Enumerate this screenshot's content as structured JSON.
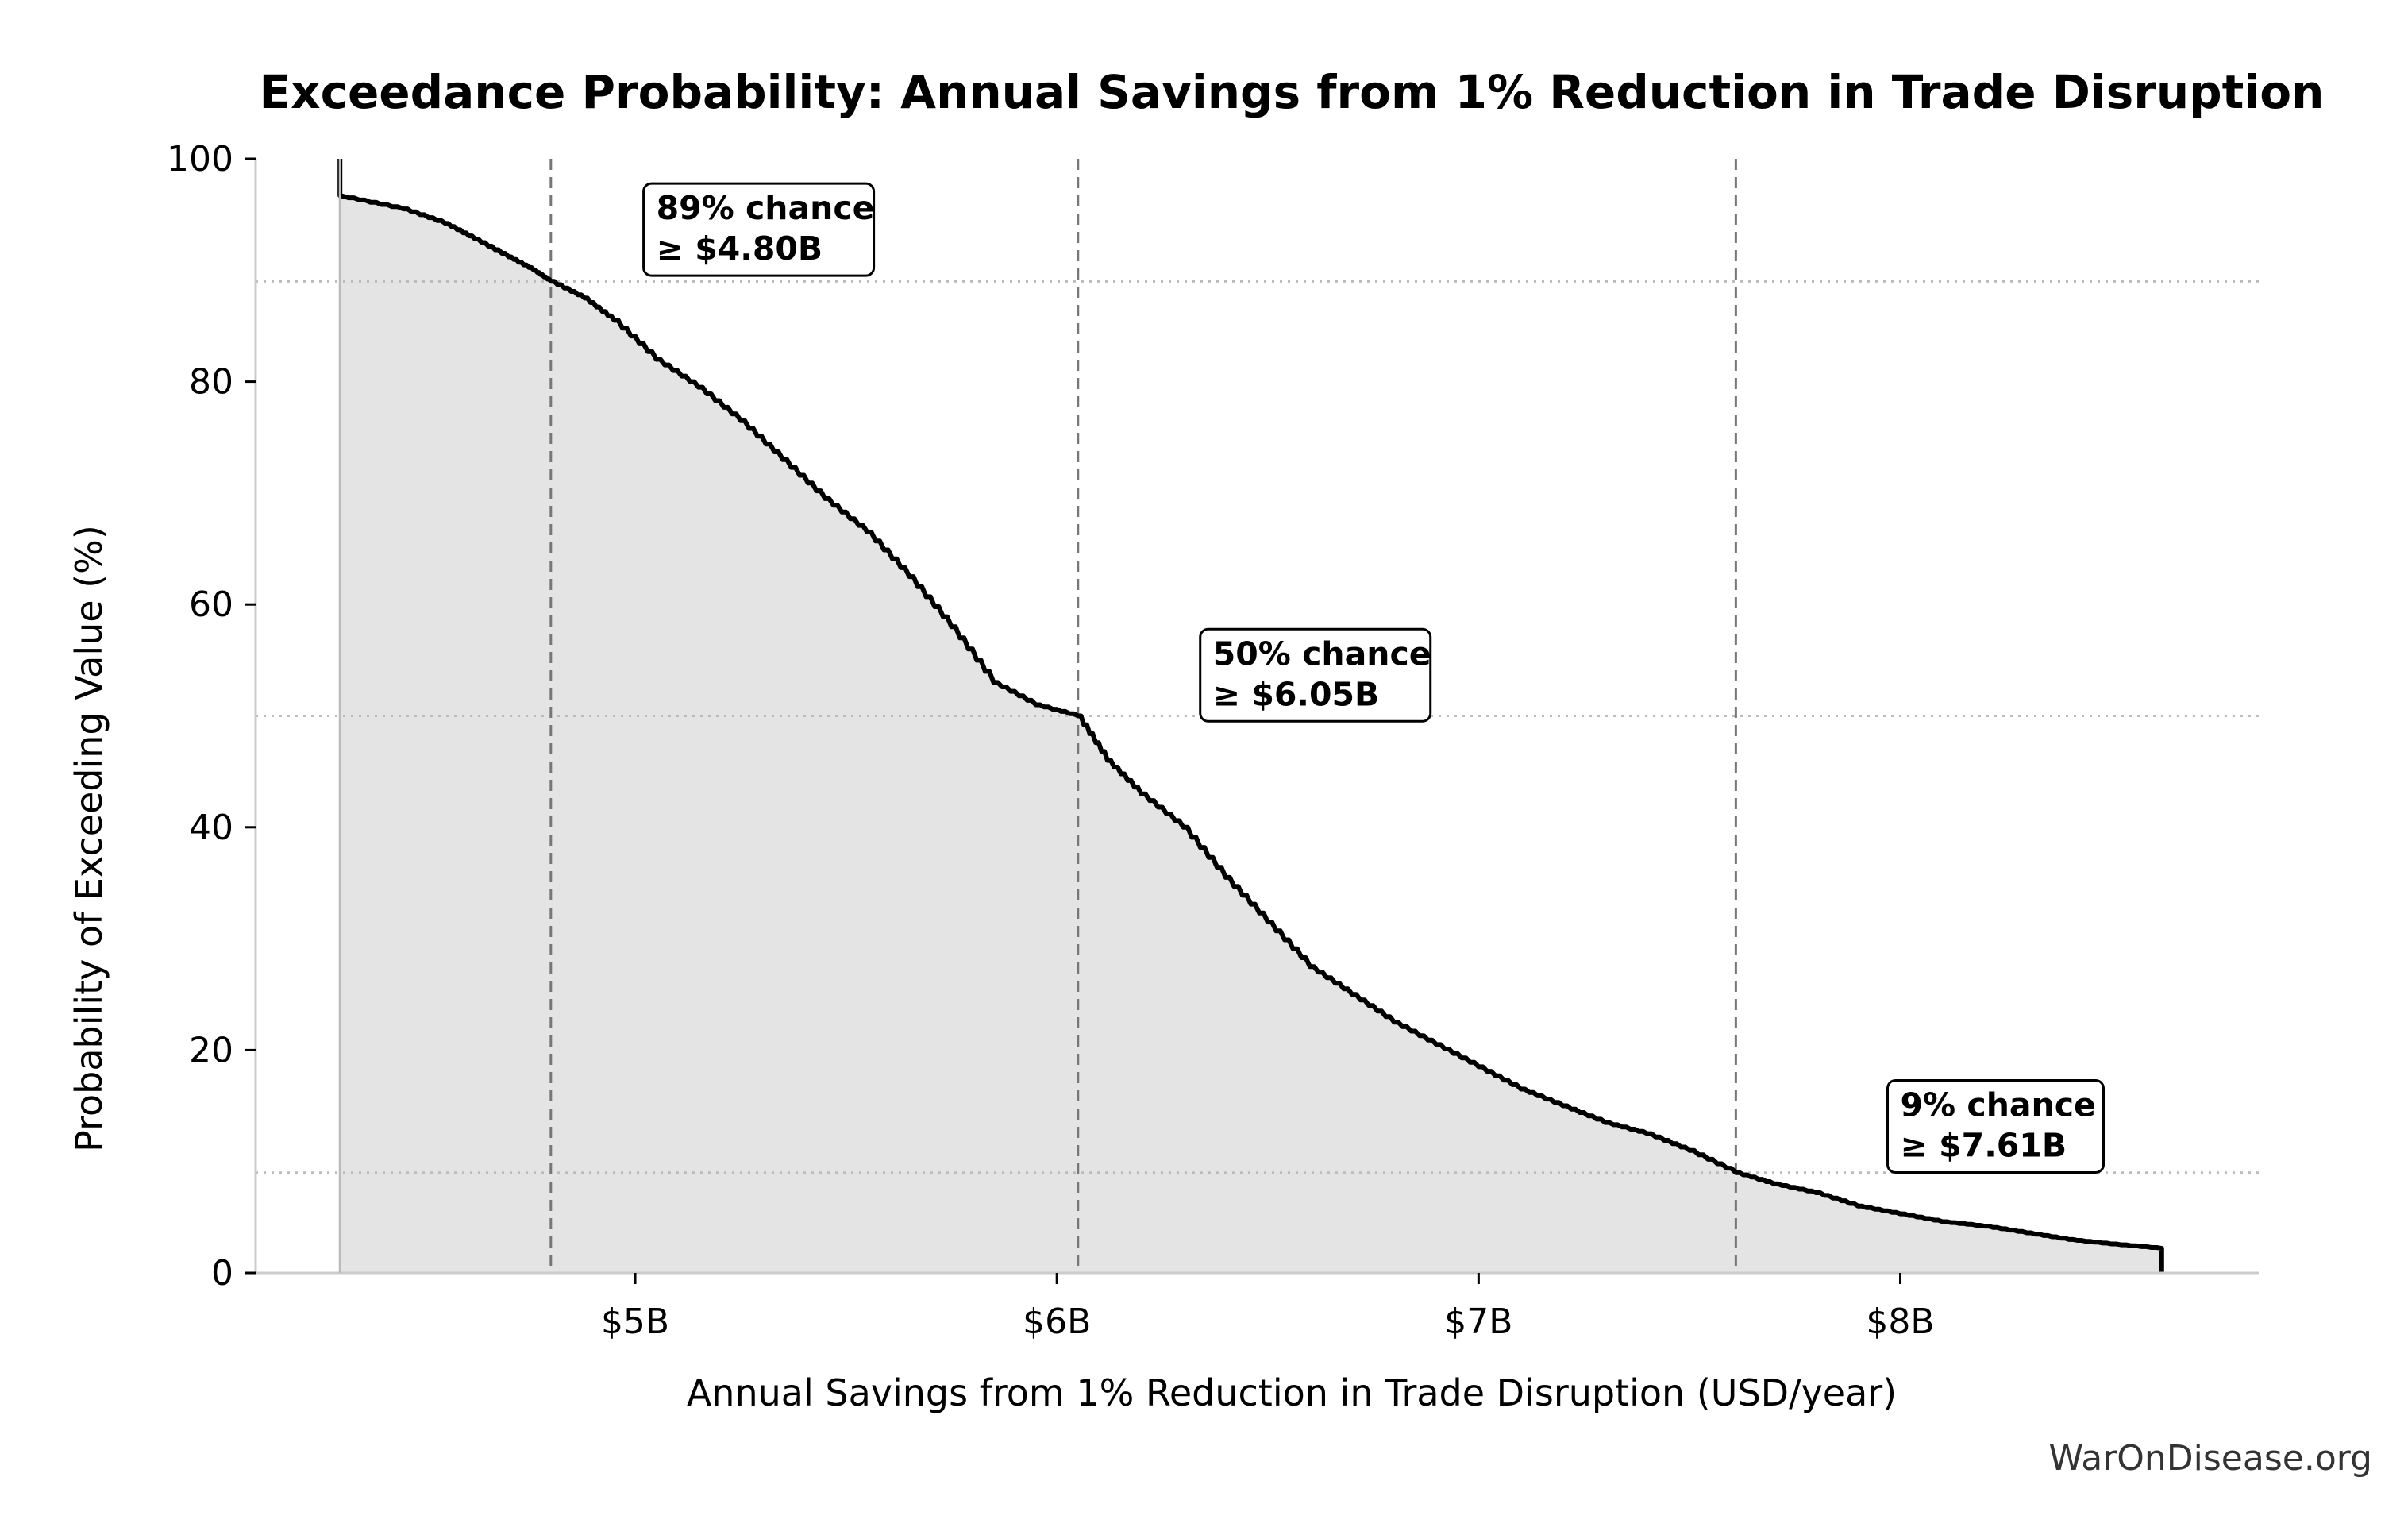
{
  "chart_data": {
    "type": "area",
    "title": "Exceedance Probability: Annual Savings from 1% Reduction in Trade Disruption",
    "xlabel": "Annual Savings from 1% Reduction in Trade Disruption (USD/year)",
    "ylabel": "Probability of Exceeding Value (%)",
    "xlim": [
      4.1,
      8.85
    ],
    "ylim": [
      0,
      100
    ],
    "xticks": [
      {
        "value": 5,
        "label": "$5B"
      },
      {
        "value": 6,
        "label": "$6B"
      },
      {
        "value": 7,
        "label": "$7B"
      },
      {
        "value": 8,
        "label": "$8B"
      }
    ],
    "yticks": [
      {
        "value": 0,
        "label": "0"
      },
      {
        "value": 20,
        "label": "20"
      },
      {
        "value": 40,
        "label": "40"
      },
      {
        "value": 60,
        "label": "60"
      },
      {
        "value": 80,
        "label": "80"
      },
      {
        "value": 100,
        "label": "100"
      }
    ],
    "series": [
      {
        "x": [
          4.3,
          4.3,
          4.32,
          4.45,
          4.55,
          4.62,
          4.7,
          4.76,
          4.8,
          4.88,
          4.95,
          5.05,
          5.15,
          5.25,
          5.35,
          5.45,
          5.55,
          5.65,
          5.75,
          5.85,
          5.95,
          6.05,
          6.12,
          6.2,
          6.3,
          6.4,
          6.5,
          6.6,
          6.7,
          6.8,
          6.9,
          7.0,
          7.1,
          7.2,
          7.3,
          7.4,
          7.5,
          7.61,
          7.7,
          7.8,
          7.9,
          8.0,
          8.1,
          8.2,
          8.3,
          8.4,
          8.5,
          8.62,
          8.62
        ],
        "y": [
          100,
          96.7,
          96.5,
          95.5,
          94.2,
          92.8,
          91.2,
          90.0,
          89.0,
          87.5,
          85.5,
          82.0,
          79.5,
          76.5,
          73.0,
          69.5,
          66.5,
          62.5,
          58.0,
          53.0,
          51.0,
          50.0,
          46.0,
          43.0,
          40.0,
          35.5,
          31.5,
          27.5,
          25.0,
          22.5,
          20.5,
          18.5,
          16.5,
          15.0,
          13.5,
          12.5,
          11.0,
          9.0,
          8.0,
          7.2,
          6.0,
          5.3,
          4.6,
          4.2,
          3.6,
          3.0,
          2.6,
          2.2,
          0
        ]
      }
    ],
    "reference_lines": {
      "vertical": [
        4.8,
        6.05,
        7.61
      ],
      "horizontal": [
        89,
        50,
        9
      ]
    },
    "annotations": [
      {
        "line1": "89% chance",
        "line2": "≥ $4.80B",
        "x": 5.05,
        "y": 97.5
      },
      {
        "line1": "50% chance",
        "line2": "≥ $6.05B",
        "x": 6.37,
        "y": 57.5
      },
      {
        "line1": "9% chance",
        "line2": "≥ $7.61B",
        "x": 8.0,
        "y": 17.0
      }
    ],
    "grid": false,
    "legend": "none",
    "colors": {
      "curve": "#000000",
      "fill": "#e4e4e4",
      "ref_vertical": "#777777",
      "ref_horizontal": "#bbbbbb",
      "axis": "#cccccc"
    }
  },
  "watermark": "WarOnDisease.org"
}
